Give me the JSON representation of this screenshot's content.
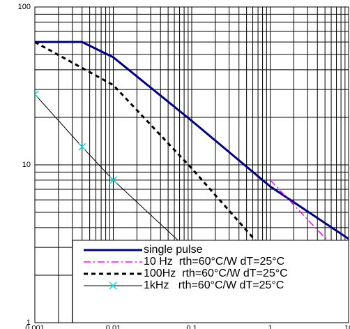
{
  "chart_data": {
    "type": "line",
    "log_x": true,
    "log_y": true,
    "grid": true,
    "minor_grid": true,
    "legend": "lower right",
    "xlim": [
      0.001,
      10
    ],
    "ylim": [
      1,
      100
    ],
    "xticks": [
      0.001,
      0.01,
      0.1,
      1,
      10
    ],
    "yticks": [
      1,
      10,
      100
    ],
    "series": [
      {
        "name": "single pulse",
        "color": "#000080",
        "style": "solid",
        "width": 3,
        "x": [
          0.001,
          0.004,
          0.01,
          0.1,
          1,
          10
        ],
        "values": [
          60,
          60,
          48,
          19,
          7.3,
          3.4
        ]
      },
      {
        "name": "10 Hz  rth=60°C/W dT=25°C",
        "color": "#ff00ff",
        "style": "dashdot",
        "width": 1.5,
        "x": [
          1,
          10
        ],
        "values": [
          8,
          2.4
        ]
      },
      {
        "name": "100Hz  rth=60°C/W dT=25°C",
        "color": "#000000",
        "style": "dashed",
        "width": 3,
        "x": [
          0.001,
          0.01,
          0.1,
          1
        ],
        "values": [
          60,
          32,
          9.5,
          2.6
        ]
      },
      {
        "name": "1kHz   rth=60°C/W dT=25°C",
        "color": "#000000",
        "marker_color": "#00e0e0",
        "style": "solid",
        "width": 1,
        "marker": "x",
        "x": [
          0.001,
          0.004,
          0.01,
          0.9
        ],
        "values": [
          28,
          13,
          8,
          1
        ]
      }
    ]
  }
}
